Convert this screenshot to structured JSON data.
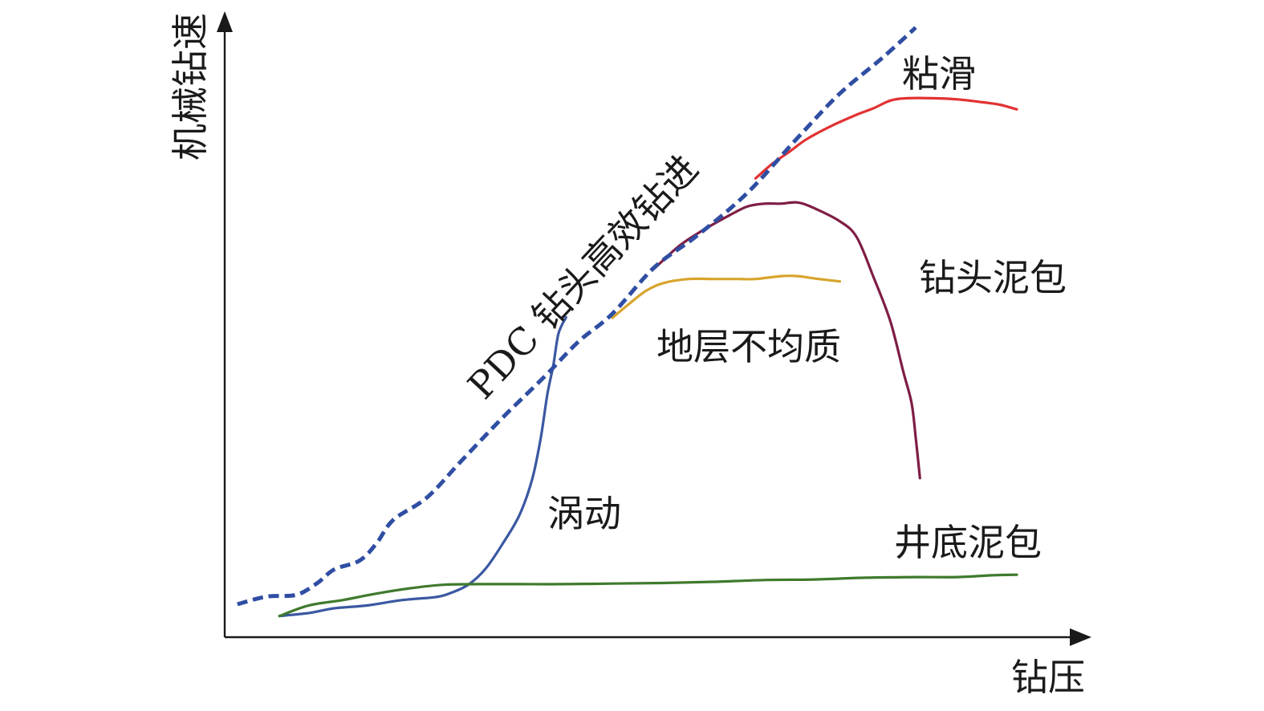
{
  "chart_data": {
    "type": "line",
    "xlabel": "钻压",
    "ylabel": "机械钻速",
    "xlim": [
      0,
      100
    ],
    "ylim": [
      0,
      100
    ],
    "grid": false,
    "series": [
      {
        "name": "PDC 钻头高效钻进",
        "style": "dashed",
        "color": "#2f4ea3",
        "x": [
          1.5,
          5,
          8.5,
          11,
          13,
          16,
          18,
          20,
          24,
          28,
          33,
          38,
          42,
          46,
          51,
          56,
          62,
          68,
          73,
          78,
          82
        ],
        "y": [
          5.6,
          6.9,
          7.2,
          9.2,
          11.5,
          13.0,
          15.9,
          19.9,
          23.7,
          29.8,
          37.3,
          44.3,
          50.2,
          54.9,
          62.8,
          68.1,
          75.4,
          84.8,
          92.3,
          98.3,
          103.5
        ]
      },
      {
        "name": "粘滑",
        "color": "#e23232",
        "x": [
          63,
          65,
          67,
          69,
          72,
          75,
          77,
          79,
          81,
          84,
          87,
          90,
          92,
          94
        ],
        "y": [
          77.9,
          80.4,
          82.4,
          84.5,
          86.8,
          88.7,
          89.8,
          91.1,
          91.5,
          91.5,
          91.3,
          90.8,
          90.4,
          89.6
        ]
      },
      {
        "name": "钻头泥包",
        "color": "#7e1d45",
        "x": [
          51,
          54,
          57,
          60,
          62,
          64,
          66,
          68,
          70,
          73,
          75,
          77,
          79,
          80.5,
          81.5,
          82,
          82.5
        ],
        "y": [
          62.6,
          66.5,
          69.3,
          71.7,
          73.1,
          73.6,
          73.6,
          73.8,
          72.8,
          70.6,
          67.9,
          61.1,
          53.6,
          45.2,
          39.8,
          33.9,
          27.0
        ]
      },
      {
        "name": "地层不均质",
        "color": "#d8a42c",
        "x": [
          46,
          48,
          50,
          52,
          55,
          58,
          61,
          63,
          66,
          68,
          70,
          73
        ],
        "y": [
          54.2,
          56.6,
          58.8,
          60.1,
          60.8,
          60.8,
          60.8,
          60.8,
          61.3,
          61.3,
          60.9,
          60.4
        ]
      },
      {
        "name": "涡动",
        "color": "#3a58a2",
        "x": [
          6.5,
          10,
          13,
          17,
          21,
          25,
          27,
          29,
          31,
          33,
          35,
          36.5,
          37.5,
          38.3,
          39,
          39.6,
          40.5
        ],
        "y": [
          3.6,
          4.1,
          4.9,
          5.4,
          6.3,
          6.8,
          7.6,
          9.0,
          11.7,
          15.9,
          20.8,
          26.9,
          33.8,
          41.3,
          46.2,
          51.5,
          54.3
        ]
      },
      {
        "name": "井底泥包",
        "color": "#3f7a2d",
        "x": [
          6.5,
          10,
          14,
          18,
          22,
          26,
          30,
          35,
          40,
          46,
          52,
          58,
          64,
          70,
          76,
          82,
          87,
          91,
          94
        ],
        "y": [
          3.6,
          5.4,
          6.3,
          7.4,
          8.3,
          8.9,
          9.0,
          9.0,
          9.0,
          9.1,
          9.2,
          9.4,
          9.7,
          9.8,
          10.1,
          10.2,
          10.2,
          10.5,
          10.6
        ]
      }
    ]
  }
}
